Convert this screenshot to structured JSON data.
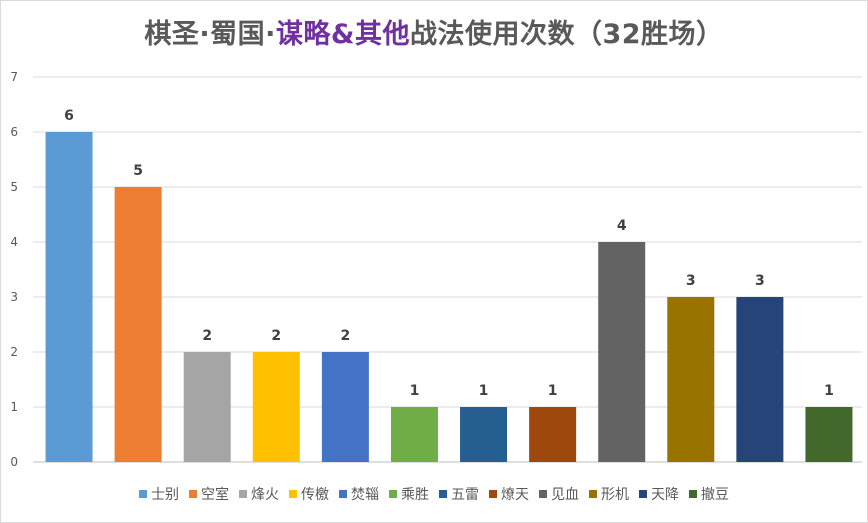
{
  "title": {
    "part1": "棋圣·蜀国·",
    "part2": "谋略&其他",
    "part3": "战法使用次数（32胜场）"
  },
  "chart_data": {
    "type": "bar",
    "categories": [
      "士别",
      "空室",
      "烽火",
      "传檄",
      "焚辎",
      "乘胜",
      "五雷",
      "燎天",
      "见血",
      "形机",
      "天降",
      "撤豆"
    ],
    "values": [
      6,
      5,
      2,
      2,
      2,
      1,
      1,
      1,
      4,
      3,
      3,
      1
    ],
    "colors": [
      "#5b9bd5",
      "#ed7d31",
      "#a5a5a5",
      "#ffc000",
      "#4472c4",
      "#70ad47",
      "#255e91",
      "#9e480e",
      "#636363",
      "#997300",
      "#264478",
      "#43682b"
    ],
    "ylim": [
      0,
      7
    ],
    "yticks": [
      "0",
      "1",
      "2",
      "3",
      "4",
      "5",
      "6",
      "7"
    ],
    "grid": true,
    "legend_position": "bottom",
    "data_labels": true
  }
}
